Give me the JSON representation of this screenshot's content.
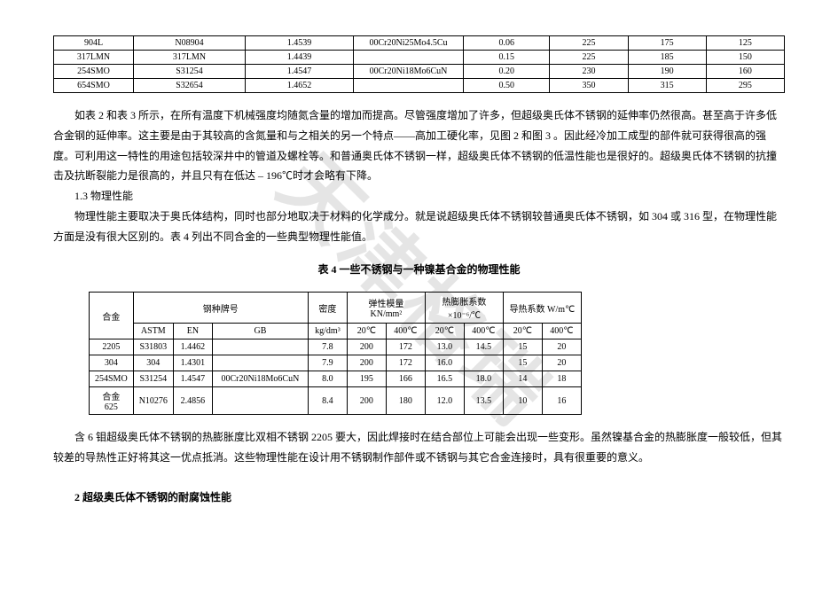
{
  "watermark": "天津格瑞",
  "table1": {
    "rows": [
      [
        "904L",
        "N08904",
        "1.4539",
        "00Cr20Ni25Mo4.5Cu",
        "0.06",
        "225",
        "175",
        "125"
      ],
      [
        "317LMN",
        "317LMN",
        "1.4439",
        "",
        "0.15",
        "225",
        "185",
        "150"
      ],
      [
        "254SMO",
        "S31254",
        "1.4547",
        "00Cr20Ni18Mo6CuN",
        "0.20",
        "230",
        "190",
        "160"
      ],
      [
        "654SMO",
        "S32654",
        "1.4652",
        "",
        "0.50",
        "350",
        "315",
        "295"
      ]
    ]
  },
  "para1": "如表 2 和表 3 所示，在所有温度下机械强度均随氮含量的增加而提高。尽管强度增加了许多，但超级奥氏体不锈钢的延伸率仍然很高。甚至高于许多低合金钢的延伸率。这主要是由于其较高的含氮量和与之相关的另一个特点——高加工硬化率，见图  2 和图 3 。因此经冷加工成型的部件就可获得很高的强度。可利用这一特性的用途包括较深井中的管道及螺栓等。和普通奥氏体不锈钢一样，超级奥氏体不锈钢的低温性能也是很好的。超级奥氏体不锈钢的抗撞击及抗断裂能力是很高的，并且只有在低达 – 196℃时才会略有下降。",
  "sub13": "1.3 物理性能",
  "para2": "物理性能主要取决于奥氏体结构，同时也部分地取决于材料的化学成分。就是说超级奥氏体不锈钢较普通奥氏体不锈钢，如 304 或 316 型，在物理性能方面是没有很大区别的。表 4 列出不同合金的一些典型物理性能值。",
  "t4title": "表 4  一些不锈钢与一种镍基合金的物理性能",
  "table2": {
    "headers": {
      "alloy": "合金",
      "grade": "钢种牌号",
      "astm": "ASTM",
      "en": "EN",
      "gb": "GB",
      "density": "密度",
      "density_unit": "kg/dm³",
      "elastic": "弹性模量",
      "elastic_unit": "KN/mm²",
      "thermal_exp": "热膨胀系数×10⁻⁶/℃",
      "thermal_cond": "导热系数 W/m℃",
      "t20": "20℃",
      "t400": "400℃"
    },
    "rows": [
      [
        "2205",
        "S31803",
        "1.4462",
        "",
        "7.8",
        "200",
        "172",
        "13.0",
        "14.5",
        "15",
        "20"
      ],
      [
        "304",
        "304",
        "1.4301",
        "",
        "7.9",
        "200",
        "172",
        "16.0",
        "",
        "15",
        "20"
      ],
      [
        "254SMO",
        "S31254",
        "1.4547",
        "00Cr20Ni18Mo6CuN",
        "8.0",
        "195",
        "166",
        "16.5",
        "18.0",
        "14",
        "18"
      ],
      [
        "合金 625",
        "N10276",
        "2.4856",
        "",
        "8.4",
        "200",
        "180",
        "12.0",
        "13.5",
        "10",
        "16"
      ]
    ]
  },
  "para3": "含 6 钼超级奥氏体不锈钢的热膨胀度比双相不锈钢 2205 要大，因此焊接时在结合部位上可能会出现一些变形。虽然镍基合金的热膨胀度一般较低，但其较差的导热性正好将其这一优点抵消。这些物理性能在设计用不锈钢制作部件或不锈钢与其它合金连接时，具有很重要的意义。",
  "sec2": "2 超级奥氏体不锈钢的耐腐蚀性能"
}
